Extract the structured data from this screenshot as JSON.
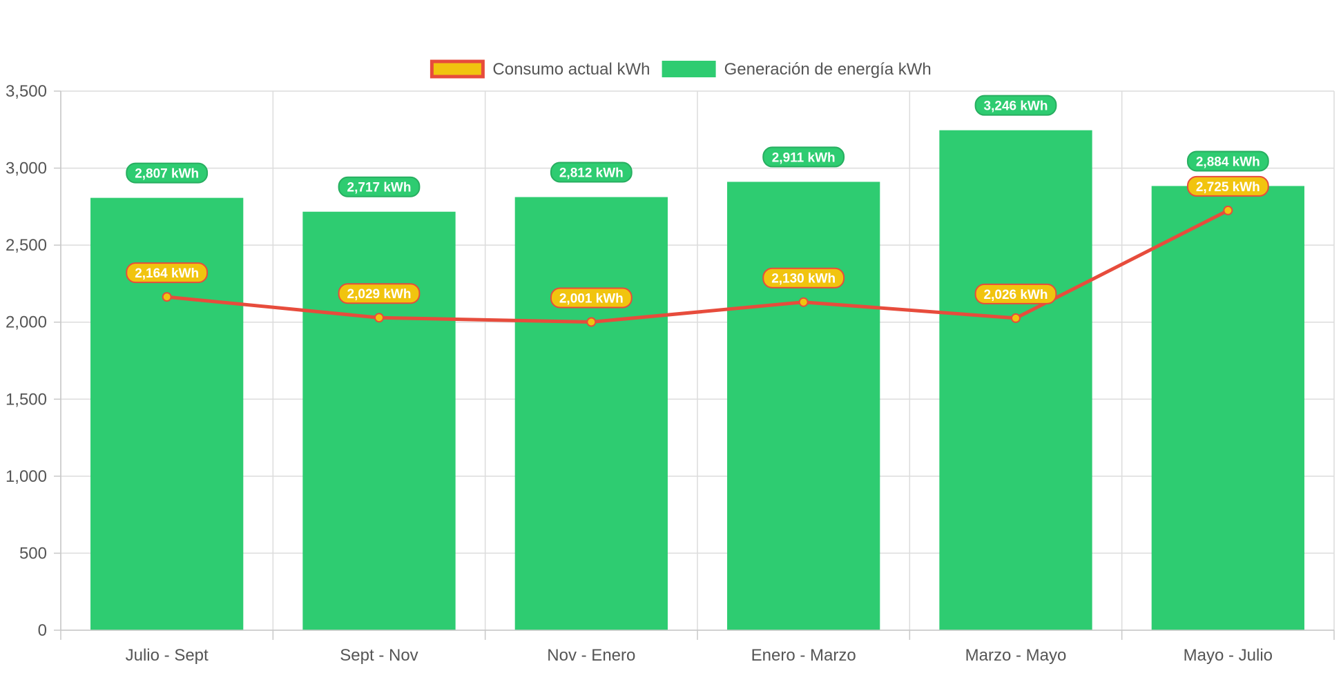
{
  "chart_data": {
    "type": "bar",
    "title": "",
    "xlabel": "",
    "ylabel": "",
    "categories": [
      "Julio - Sept",
      "Sept - Nov",
      "Nov - Enero",
      "Enero - Marzo",
      "Marzo - Mayo",
      "Mayo - Julio"
    ],
    "ylim": [
      0,
      3500
    ],
    "yticks": [
      0,
      500,
      1000,
      1500,
      2000,
      2500,
      3000,
      3500
    ],
    "ytick_labels": [
      "0",
      "500",
      "1,000",
      "1,500",
      "2,000",
      "2,500",
      "3,000",
      "3,500"
    ],
    "grid": true,
    "legend_position": "top",
    "series": [
      {
        "name": "Consumo actual kWh",
        "type": "line",
        "values": [
          2164,
          2029,
          2001,
          2130,
          2026,
          2725
        ],
        "labels": [
          "2,164 kWh",
          "2,029 kWh",
          "2,001 kWh",
          "2,130 kWh",
          "2,026 kWh",
          "2,725 kWh"
        ],
        "color": "#e74c3c",
        "fill_color": "#f1c40f"
      },
      {
        "name": "Generación de energía kWh",
        "type": "bar",
        "values": [
          2807,
          2717,
          2812,
          2911,
          3246,
          2884
        ],
        "labels": [
          "2,807 kWh",
          "2,717 kWh",
          "2,812 kWh",
          "2,911 kWh",
          "3,246 kWh",
          "2,884 kWh"
        ],
        "color": "#2ecc71",
        "label_border": "#27ae60"
      }
    ]
  }
}
